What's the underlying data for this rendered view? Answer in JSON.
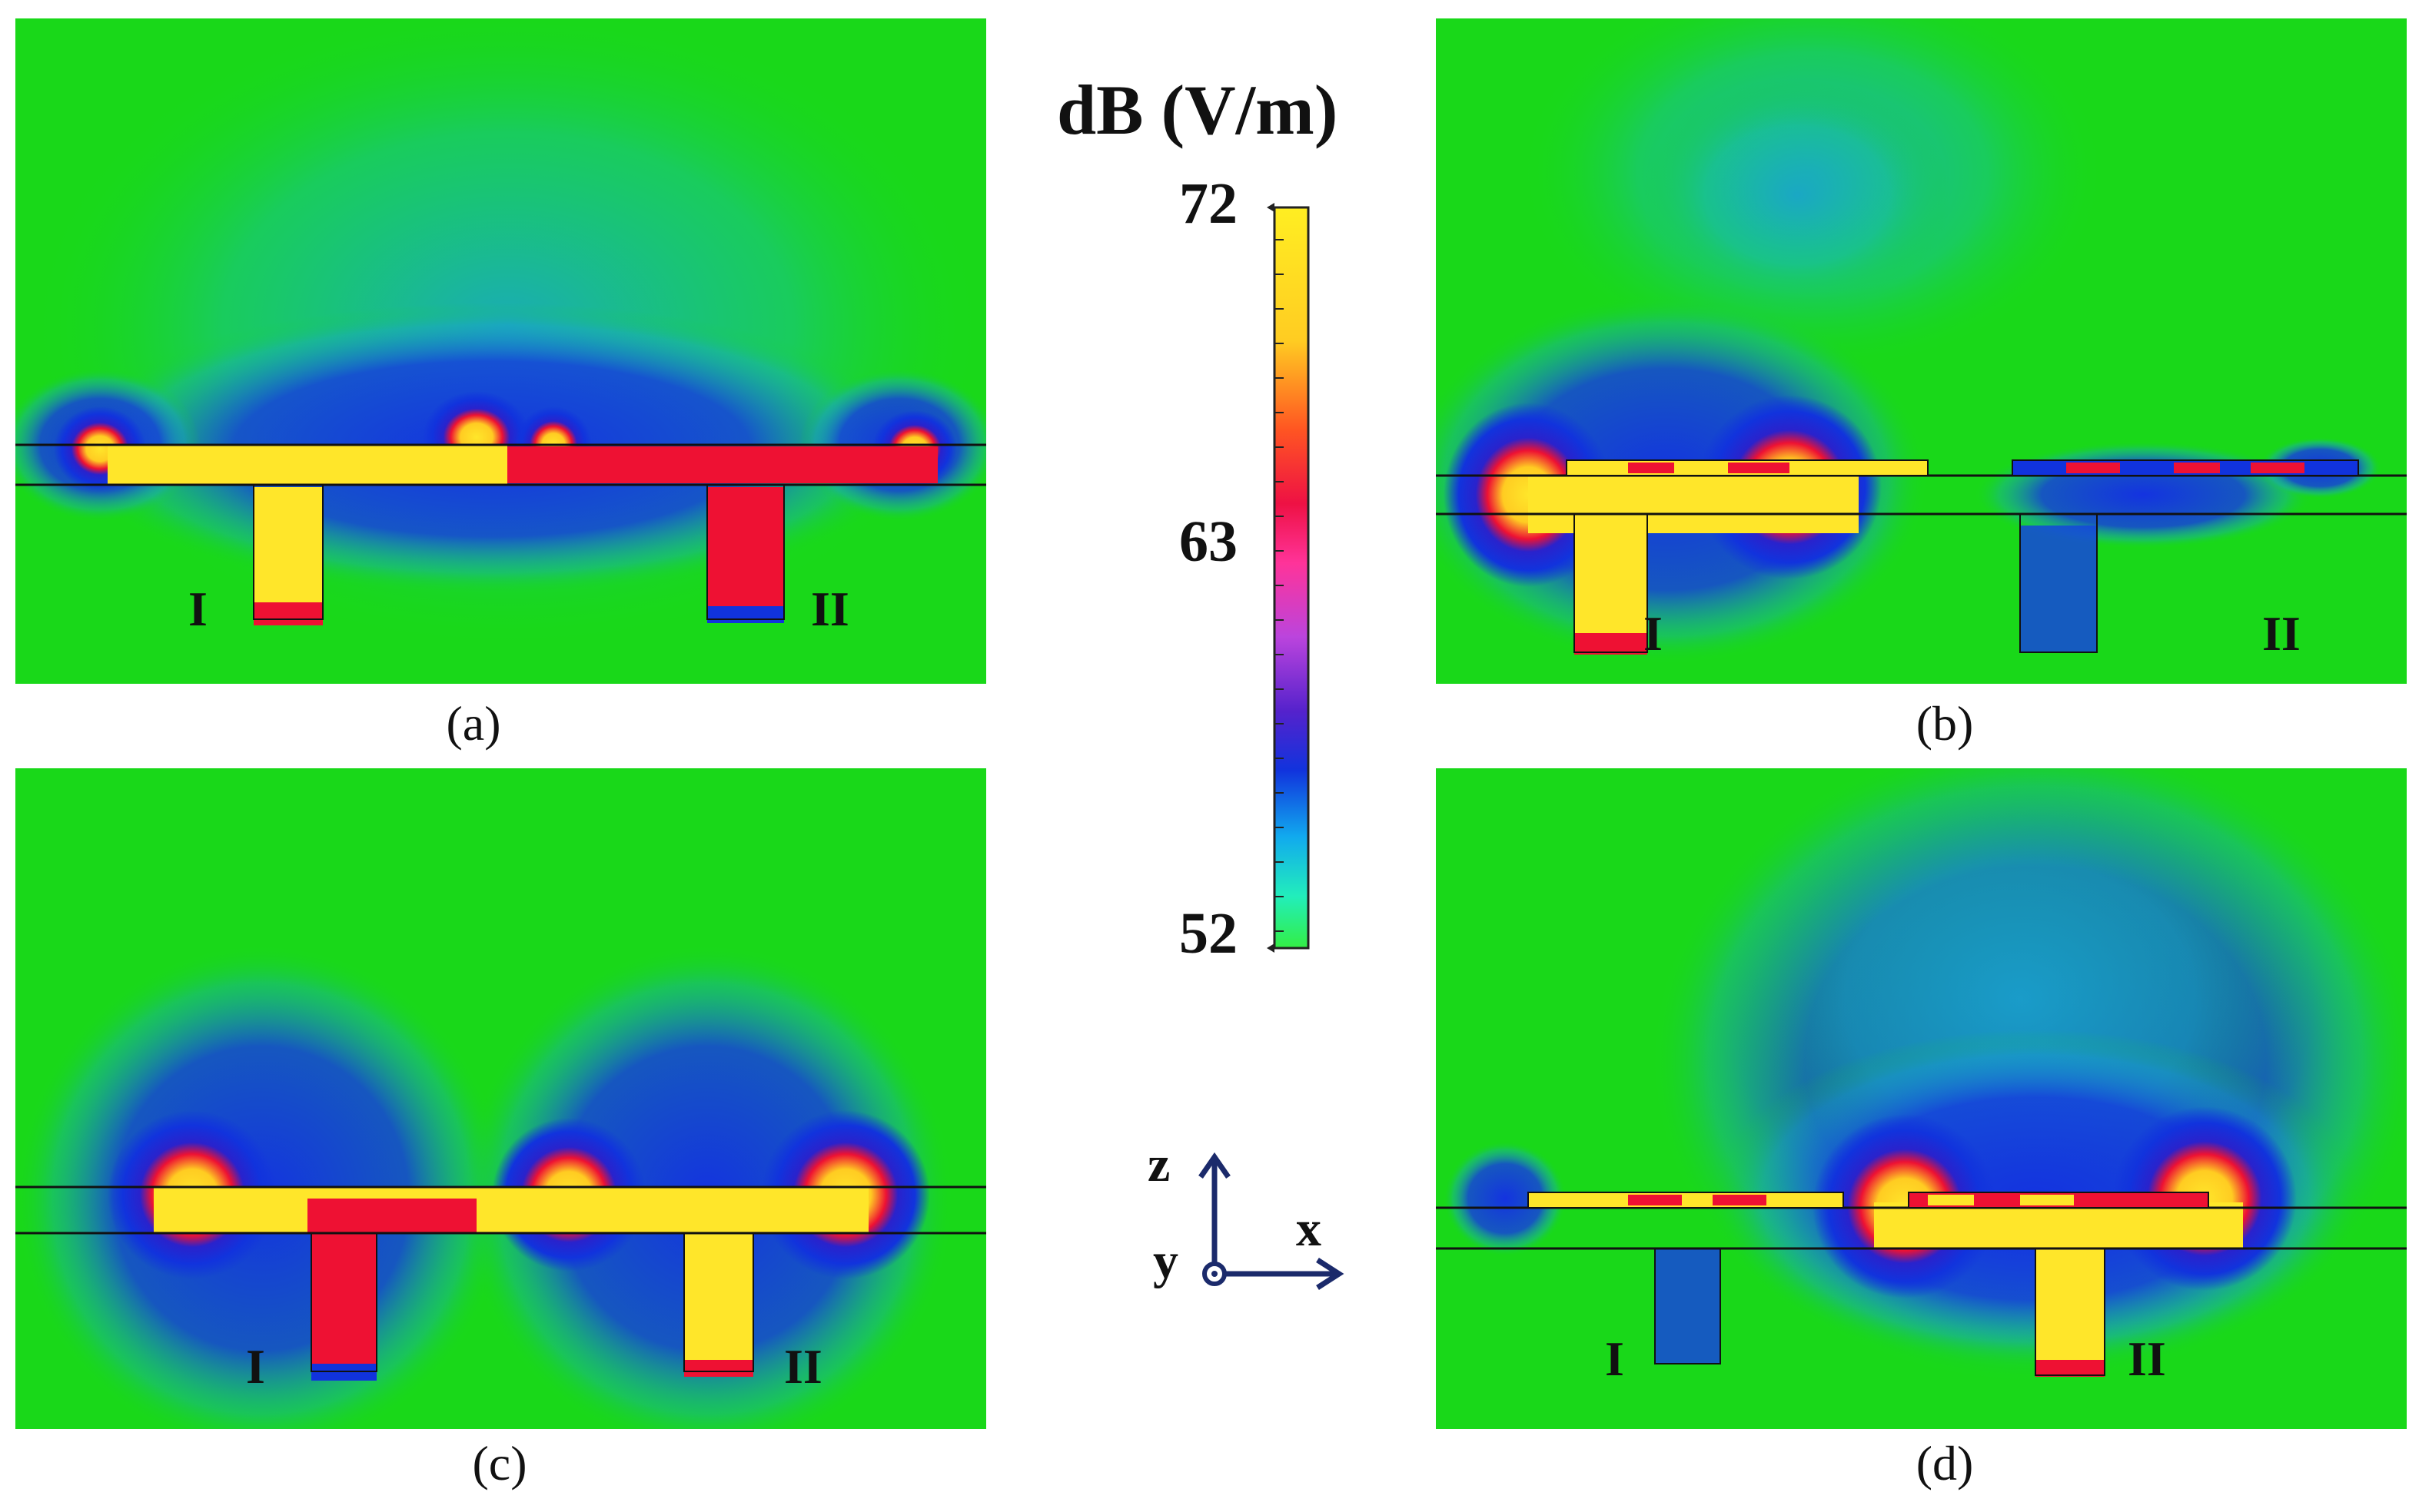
{
  "panels": [
    {
      "id": "a",
      "caption": "(a)",
      "port1": "I",
      "port2": "II"
    },
    {
      "id": "b",
      "caption": "(b)",
      "port1": "I",
      "port2": "II"
    },
    {
      "id": "c",
      "caption": "(c)",
      "port1": "I",
      "port2": "II"
    },
    {
      "id": "d",
      "caption": "(d)",
      "port1": "I",
      "port2": "II"
    }
  ],
  "colorbar": {
    "title": "dB (V/m)",
    "max_label": "72",
    "mid_label": "63",
    "min_label": "52",
    "max": 72,
    "mid": 63,
    "min": 52,
    "colors": [
      "#ffee22",
      "#ffcc22",
      "#ff6622",
      "#ee1133",
      "#ff3399",
      "#cc44dd",
      "#7733cc",
      "#3322cc",
      "#1133dd",
      "#11aaee",
      "#22eecc",
      "#33ee55"
    ]
  },
  "axes": {
    "z": "z",
    "x": "x",
    "y": "y"
  },
  "colors": {
    "background_field": "#19d819",
    "low_field": "#1133dd",
    "mid_field": "#ee1133",
    "high_field": "#ffe62a",
    "axis_arrow": "#1b2a6b"
  }
}
